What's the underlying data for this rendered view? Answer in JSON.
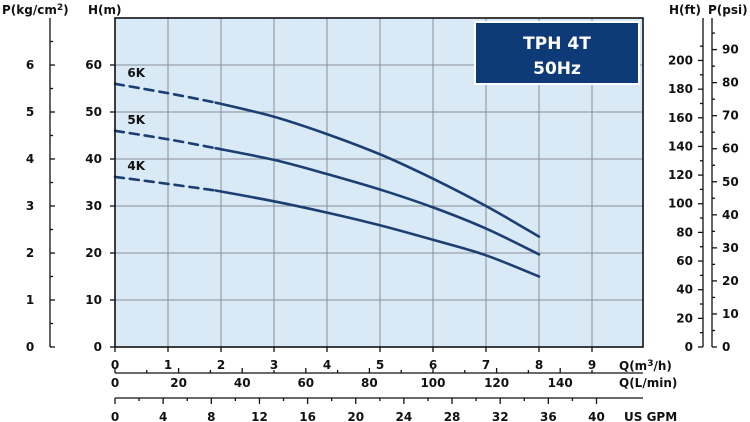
{
  "chart_data": {
    "type": "line",
    "title_lines": [
      "TPH 4T",
      "50Hz"
    ],
    "colors": {
      "curve": "#1b3f73",
      "plot_bg": "#d9e9f5",
      "title_bg": "#0f3a78",
      "grid": "#8a8f96"
    },
    "x_primary": {
      "label": "Q(m³/h)",
      "unit_main": "Q(m",
      "unit_sup": "3",
      "unit_tail": "/h)",
      "range": [
        0,
        10
      ],
      "ticks": [
        0,
        1,
        2,
        3,
        4,
        5,
        6,
        7,
        8,
        9
      ]
    },
    "x_lpm": {
      "label": "Q(L/min)",
      "ticks": [
        0,
        20,
        40,
        60,
        80,
        100,
        120,
        140
      ],
      "factor": 16.6667
    },
    "x_gpm": {
      "label": "US GPM",
      "ticks": [
        0,
        4,
        8,
        12,
        16,
        20,
        24,
        28,
        32,
        36,
        40
      ],
      "factor": 4.4029
    },
    "y_primary": {
      "label": "H(m)",
      "range": [
        0,
        70
      ],
      "ticks": [
        0,
        10,
        20,
        30,
        40,
        50,
        60
      ]
    },
    "y_kg": {
      "label": "P(kg/cm²)",
      "unit_main": "P(kg/cm",
      "unit_sup": "2",
      "unit_tail": ")",
      "ticks": [
        0,
        1,
        2,
        3,
        4,
        5,
        6
      ],
      "factor": 0.1
    },
    "y_ft": {
      "label": "H(ft)",
      "ticks": [
        0,
        20,
        40,
        60,
        80,
        100,
        120,
        140,
        160,
        180,
        200
      ],
      "factor": 3.28084
    },
    "y_psi": {
      "label": "P(psi)",
      "ticks": [
        0,
        10,
        20,
        30,
        40,
        50,
        60,
        70,
        80,
        90
      ],
      "factor": 1.4223
    },
    "series": [
      {
        "name": "6K",
        "dashed_until": 1.9,
        "x": [
          0,
          1,
          1.9,
          3,
          4,
          5,
          6,
          7,
          8
        ],
        "y": [
          56,
          54,
          52,
          49,
          45.3,
          41,
          35.8,
          30,
          23.5
        ]
      },
      {
        "name": "5K",
        "dashed_until": 1.9,
        "x": [
          0,
          1,
          1.9,
          3,
          4,
          5,
          6,
          7,
          8
        ],
        "y": [
          46,
          44.2,
          42.3,
          39.8,
          36.8,
          33.5,
          29.7,
          25.2,
          19.7
        ]
      },
      {
        "name": "4K",
        "dashed_until": 1.9,
        "x": [
          0,
          1,
          1.9,
          3,
          4,
          5,
          6,
          7,
          8
        ],
        "y": [
          36.2,
          34.7,
          33.3,
          31,
          28.6,
          25.9,
          22.8,
          19.5,
          15
        ]
      }
    ]
  }
}
